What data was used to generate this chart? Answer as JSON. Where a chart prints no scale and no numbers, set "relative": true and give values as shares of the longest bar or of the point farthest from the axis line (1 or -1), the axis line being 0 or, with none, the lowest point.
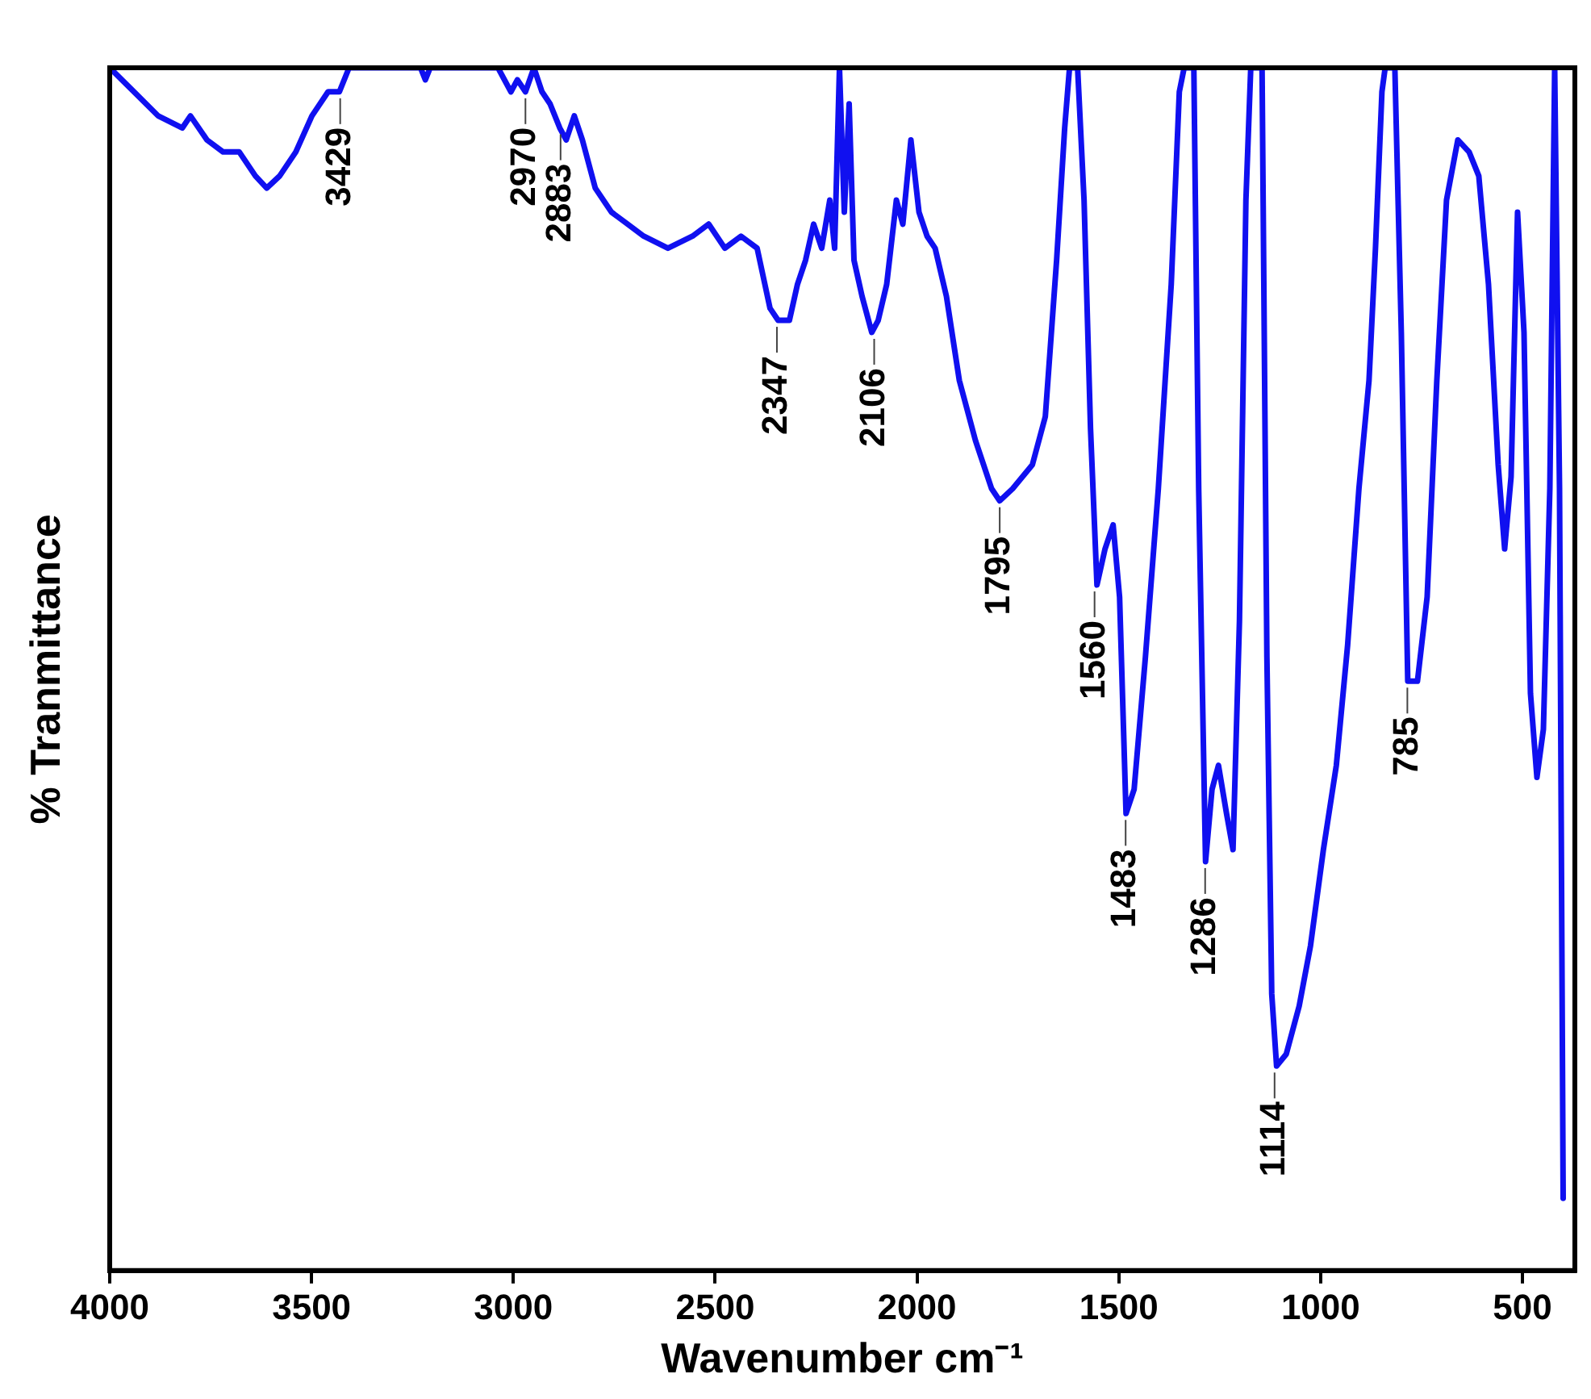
{
  "chart_data": {
    "type": "line",
    "relative": true,
    "xlabel": "Wavenumber cm⁻¹",
    "ylabel": "% Tranmittance",
    "xlim": [
      4000,
      370
    ],
    "xticks": [
      4000,
      3500,
      3000,
      2500,
      2000,
      1500,
      1000,
      500
    ],
    "grid": false,
    "legend": false,
    "marker": "none",
    "line_style": "solid",
    "tick_labels": "x",
    "x": [
      4000,
      3940,
      3880,
      3820,
      3800,
      3759,
      3719,
      3679,
      3639,
      3611,
      3579,
      3539,
      3499,
      3459,
      3431,
      3407,
      3230,
      3218,
      3206,
      3078,
      3038,
      3006,
      2990,
      2970,
      2949,
      2929,
      2909,
      2885,
      2869,
      2849,
      2829,
      2797,
      2757,
      2717,
      2677,
      2617,
      2556,
      2516,
      2476,
      2436,
      2396,
      2364,
      2344,
      2316,
      2296,
      2276,
      2256,
      2236,
      2216,
      2204,
      2192,
      2180,
      2168,
      2156,
      2136,
      2112,
      2096,
      2075,
      2051,
      2035,
      2015,
      1995,
      1975,
      1955,
      1927,
      1895,
      1855,
      1815,
      1795,
      1763,
      1714,
      1682,
      1654,
      1634,
      1622,
      1602,
      1586,
      1570,
      1554,
      1534,
      1514,
      1498,
      1482,
      1462,
      1434,
      1402,
      1370,
      1350,
      1338,
      1314,
      1302,
      1285,
      1269,
      1253,
      1233,
      1217,
      1201,
      1185,
      1173,
      1145,
      1133,
      1121,
      1109,
      1085,
      1053,
      1025,
      993,
      961,
      933,
      905,
      880,
      864,
      848,
      840,
      816,
      800,
      784,
      760,
      736,
      712,
      688,
      660,
      632,
      608,
      584,
      560,
      544,
      528,
      512,
      496,
      480,
      464,
      448,
      432,
      420,
      408,
      399
    ],
    "series": [
      {
        "color": "#1010f0",
        "values": [
          1.0,
          0.98,
          0.96,
          0.95,
          0.96,
          0.94,
          0.93,
          0.93,
          0.91,
          0.9,
          0.91,
          0.93,
          0.96,
          0.98,
          0.98,
          1.0,
          1.0,
          0.99,
          1.0,
          1.0,
          1.0,
          0.98,
          0.99,
          0.98,
          1.0,
          0.98,
          0.97,
          0.95,
          0.94,
          0.96,
          0.94,
          0.9,
          0.88,
          0.87,
          0.86,
          0.85,
          0.86,
          0.87,
          0.85,
          0.86,
          0.85,
          0.8,
          0.79,
          0.79,
          0.82,
          0.84,
          0.87,
          0.85,
          0.89,
          0.85,
          1.0,
          0.88,
          0.97,
          0.84,
          0.81,
          0.78,
          0.79,
          0.82,
          0.89,
          0.87,
          0.94,
          0.88,
          0.86,
          0.85,
          0.81,
          0.74,
          0.69,
          0.65,
          0.64,
          0.65,
          0.67,
          0.71,
          0.84,
          0.95,
          1.0,
          1.0,
          0.89,
          0.7,
          0.57,
          0.6,
          0.62,
          0.56,
          0.38,
          0.4,
          0.51,
          0.65,
          0.82,
          0.98,
          1.0,
          1.0,
          0.65,
          0.34,
          0.4,
          0.42,
          0.38,
          0.35,
          0.54,
          0.89,
          1.0,
          1.0,
          0.51,
          0.23,
          0.17,
          0.18,
          0.22,
          0.27,
          0.35,
          0.42,
          0.52,
          0.65,
          0.74,
          0.85,
          0.98,
          1.0,
          1.0,
          0.78,
          0.49,
          0.49,
          0.56,
          0.74,
          0.89,
          0.94,
          0.93,
          0.91,
          0.82,
          0.67,
          0.6,
          0.66,
          0.88,
          0.78,
          0.48,
          0.41,
          0.45,
          0.65,
          1.0,
          0.65,
          0.06
        ]
      }
    ],
    "annotations": [
      {
        "text": "3429",
        "x": 3429,
        "y": 0.98
      },
      {
        "text": "2970",
        "x": 2970,
        "y": 0.98
      },
      {
        "text": "2883",
        "x": 2883,
        "y": 0.95
      },
      {
        "text": "2347",
        "x": 2347,
        "y": 0.79
      },
      {
        "text": "2106",
        "x": 2106,
        "y": 0.78
      },
      {
        "text": "1795",
        "x": 1795,
        "y": 0.64
      },
      {
        "text": "1560",
        "x": 1560,
        "y": 0.57
      },
      {
        "text": "1483",
        "x": 1483,
        "y": 0.38
      },
      {
        "text": "1286",
        "x": 1286,
        "y": 0.34
      },
      {
        "text": "1114",
        "x": 1114,
        "y": 0.17
      },
      {
        "text": "785",
        "x": 785,
        "y": 0.49
      }
    ]
  }
}
